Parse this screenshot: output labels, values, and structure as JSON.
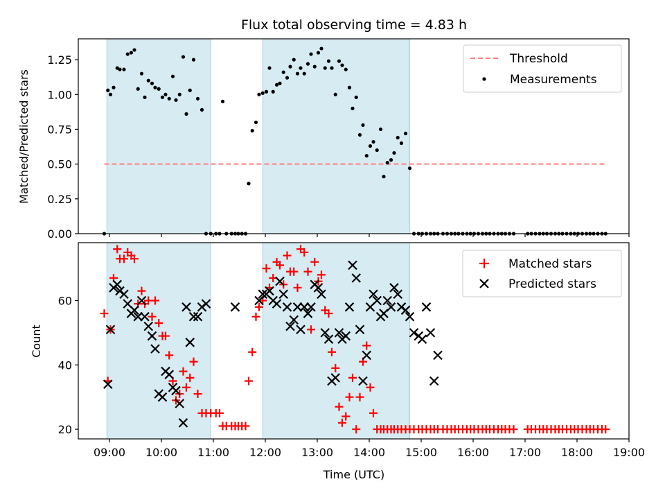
{
  "chart_data": [
    {
      "type": "scatter",
      "title": "Flux total observing time = 4.83 h",
      "ylabel": "Matched/Predicted stars",
      "xlabel": "",
      "xlim": [
        8.4,
        19.0
      ],
      "ylim": [
        0.0,
        1.4
      ],
      "yticks": [
        0.0,
        0.25,
        0.5,
        0.75,
        1.0,
        1.25
      ],
      "ytick_labels": [
        "0.00",
        "0.25",
        "0.50",
        "0.75",
        "1.00",
        "1.25"
      ],
      "shaded_intervals": [
        [
          8.95,
          10.95
        ],
        [
          11.95,
          14.78
        ]
      ],
      "legend_location": "upper right",
      "threshold": {
        "name": "Threshold",
        "value": 0.5,
        "x": [
          8.9,
          18.55
        ],
        "color": "#ff7f7f"
      },
      "series": [
        {
          "name": "Measurements",
          "color": "#000000",
          "x": [
            8.9,
            8.97,
            9.02,
            9.08,
            9.15,
            9.2,
            9.28,
            9.35,
            9.42,
            9.48,
            9.55,
            9.62,
            9.68,
            9.75,
            9.82,
            9.88,
            9.95,
            10.02,
            10.08,
            10.15,
            10.22,
            10.28,
            10.35,
            10.42,
            10.48,
            10.55,
            10.62,
            10.7,
            10.78,
            10.86,
            10.95,
            11.05,
            11.12,
            11.18,
            11.25,
            11.35,
            11.42,
            11.48,
            11.55,
            11.62,
            11.68,
            11.75,
            11.82,
            11.88,
            11.95,
            12.02,
            12.08,
            12.15,
            12.22,
            12.28,
            12.35,
            12.42,
            12.48,
            12.55,
            12.62,
            12.68,
            12.75,
            12.82,
            12.88,
            12.95,
            13.02,
            13.08,
            13.15,
            13.22,
            13.28,
            13.35,
            13.42,
            13.48,
            13.55,
            13.62,
            13.68,
            13.75,
            13.82,
            13.88,
            13.95,
            14.02,
            14.08,
            14.15,
            14.22,
            14.28,
            14.35,
            14.42,
            14.48,
            14.55,
            14.62,
            14.7,
            14.78,
            14.86,
            14.95,
            15.02,
            15.1,
            15.18,
            15.25,
            15.32,
            15.42,
            15.5,
            15.58,
            15.65,
            15.72,
            15.8,
            15.88,
            15.95,
            16.02,
            16.1,
            16.18,
            16.25,
            16.32,
            16.4,
            16.48,
            16.55,
            16.62,
            16.7,
            16.78,
            17.05,
            17.12,
            17.2,
            17.28,
            17.35,
            17.42,
            17.5,
            17.58,
            17.65,
            17.72,
            17.8,
            17.88,
            17.95,
            18.02,
            18.1,
            18.18,
            18.25,
            18.32,
            18.4,
            18.48,
            18.55
          ],
          "y": [
            0.0,
            1.03,
            1.0,
            1.05,
            1.19,
            1.18,
            1.18,
            1.29,
            1.3,
            1.32,
            1.04,
            1.15,
            0.98,
            1.1,
            1.08,
            1.05,
            1.04,
            0.98,
            1.0,
            0.97,
            1.13,
            0.96,
            1.0,
            1.27,
            0.86,
            1.03,
            1.25,
            0.97,
            0.89,
            0.0,
            0.0,
            0.0,
            0.0,
            0.95,
            0.0,
            0.0,
            0.0,
            0.0,
            0.0,
            0.0,
            0.36,
            0.74,
            0.8,
            1.0,
            1.01,
            1.02,
            1.19,
            1.02,
            1.07,
            1.08,
            1.16,
            1.12,
            1.2,
            1.25,
            1.15,
            1.19,
            1.15,
            1.22,
            1.29,
            1.2,
            1.3,
            1.33,
            1.19,
            1.24,
            1.19,
            1.0,
            1.24,
            1.21,
            1.18,
            1.05,
            0.9,
            0.98,
            0.71,
            0.78,
            0.56,
            0.63,
            0.66,
            0.6,
            0.75,
            0.41,
            0.51,
            0.53,
            0.58,
            0.69,
            0.65,
            0.72,
            0.47,
            0.0,
            0.0,
            0.0,
            0.0,
            0.0,
            0.0,
            0.0,
            0.0,
            0.0,
            0.0,
            0.0,
            0.0,
            0.0,
            0.0,
            0.0,
            0.0,
            0.0,
            0.0,
            0.0,
            0.0,
            0.0,
            0.0,
            0.0,
            0.0,
            0.0,
            0.0,
            0.0,
            0.0,
            0.0,
            0.0,
            0.0,
            0.0,
            0.0,
            0.0,
            0.0,
            0.0,
            0.0,
            0.0,
            0.0,
            0.0,
            0.0,
            0.0,
            0.0,
            0.0,
            0.0,
            0.0,
            0.0
          ]
        }
      ]
    },
    {
      "type": "scatter",
      "title": "",
      "xlabel": "Time (UTC)",
      "ylabel": "Count",
      "xlim": [
        8.4,
        19.0
      ],
      "ylim": [
        17,
        78
      ],
      "xticks": [
        9,
        10,
        11,
        12,
        13,
        14,
        15,
        16,
        17,
        18,
        19
      ],
      "xtick_labels": [
        "09:00",
        "10:00",
        "11:00",
        "12:00",
        "13:00",
        "14:00",
        "15:00",
        "16:00",
        "17:00",
        "18:00",
        "19:00"
      ],
      "yticks": [
        20,
        40,
        60
      ],
      "ytick_labels": [
        "20",
        "40",
        "60"
      ],
      "shaded_intervals": [
        [
          8.95,
          10.95
        ],
        [
          11.95,
          14.78
        ]
      ],
      "legend_location": "upper right",
      "series": [
        {
          "name": "Matched stars",
          "color": "#ff0000",
          "marker": "+",
          "x": [
            8.9,
            8.97,
            9.02,
            9.08,
            9.15,
            9.2,
            9.28,
            9.35,
            9.42,
            9.48,
            9.55,
            9.62,
            9.68,
            9.75,
            9.82,
            9.88,
            9.95,
            10.02,
            10.08,
            10.15,
            10.22,
            10.28,
            10.35,
            10.42,
            10.48,
            10.55,
            10.62,
            10.7,
            10.78,
            10.86,
            10.95,
            11.05,
            11.12,
            11.18,
            11.25,
            11.35,
            11.42,
            11.48,
            11.55,
            11.62,
            11.68,
            11.75,
            11.82,
            11.88,
            11.95,
            12.02,
            12.08,
            12.15,
            12.22,
            12.28,
            12.35,
            12.42,
            12.48,
            12.55,
            12.62,
            12.68,
            12.75,
            12.82,
            12.88,
            12.95,
            13.02,
            13.08,
            13.15,
            13.22,
            13.28,
            13.35,
            13.42,
            13.48,
            13.55,
            13.62,
            13.68,
            13.75,
            13.82,
            13.88,
            13.95,
            14.02,
            14.08,
            14.15,
            14.22,
            14.28,
            14.35,
            14.42,
            14.48,
            14.55,
            14.62,
            14.7,
            14.78,
            14.86,
            14.95,
            15.02,
            15.1,
            15.18,
            15.25,
            15.32,
            15.42,
            15.5,
            15.58,
            15.65,
            15.72,
            15.8,
            15.88,
            15.95,
            16.02,
            16.1,
            16.18,
            16.25,
            16.32,
            16.4,
            16.48,
            16.55,
            16.62,
            16.7,
            16.78,
            17.05,
            17.12,
            17.2,
            17.28,
            17.35,
            17.42,
            17.5,
            17.58,
            17.65,
            17.72,
            17.8,
            17.88,
            17.95,
            18.02,
            18.1,
            18.18,
            18.25,
            18.32,
            18.4,
            18.48,
            18.55
          ],
          "y": [
            56,
            35,
            51,
            67,
            76,
            73,
            73,
            75,
            74,
            73,
            59,
            63,
            59,
            60,
            55,
            60,
            53,
            49,
            49,
            43,
            35,
            29,
            31,
            38,
            33,
            36,
            41,
            31,
            25,
            25,
            25,
            25,
            25,
            21,
            21,
            21,
            21,
            21,
            21,
            21,
            35,
            44,
            55,
            58,
            60,
            70,
            64,
            67,
            72,
            71,
            65,
            74,
            69,
            69,
            64,
            76,
            75,
            69,
            51,
            72,
            66,
            68,
            57,
            56,
            44,
            39,
            27,
            22,
            24,
            30,
            36,
            20,
            30,
            41,
            46,
            33,
            25,
            20,
            20,
            20,
            20,
            20,
            20,
            20,
            20,
            20,
            20,
            20,
            20,
            20,
            20,
            20,
            20,
            20,
            20,
            20,
            20,
            20,
            20,
            20,
            20,
            20,
            20,
            20,
            20,
            20,
            20,
            20,
            20,
            20,
            20,
            20,
            20,
            20,
            20,
            20,
            20,
            20,
            20,
            20,
            20,
            20,
            20,
            20,
            20,
            20,
            20,
            20,
            20,
            20,
            20,
            20,
            20,
            20
          ]
        },
        {
          "name": "Predicted stars",
          "color": "#000000",
          "marker": "x",
          "x": [
            8.97,
            9.02,
            9.08,
            9.15,
            9.2,
            9.28,
            9.35,
            9.42,
            9.48,
            9.55,
            9.62,
            9.68,
            9.75,
            9.82,
            9.88,
            9.95,
            10.02,
            10.08,
            10.15,
            10.22,
            10.28,
            10.35,
            10.42,
            10.48,
            10.55,
            10.62,
            10.7,
            10.78,
            10.86,
            11.42,
            11.88,
            11.95,
            12.02,
            12.08,
            12.15,
            12.22,
            12.28,
            12.35,
            12.42,
            12.48,
            12.55,
            12.62,
            12.68,
            12.75,
            12.82,
            12.88,
            12.95,
            13.02,
            13.08,
            13.15,
            13.22,
            13.28,
            13.35,
            13.42,
            13.48,
            13.55,
            13.62,
            13.68,
            13.75,
            13.82,
            13.88,
            13.95,
            14.02,
            14.08,
            14.15,
            14.22,
            14.28,
            14.35,
            14.42,
            14.48,
            14.55,
            14.62,
            14.7,
            14.78,
            14.86,
            14.95,
            15.02,
            15.1,
            15.18,
            15.25,
            15.32
          ],
          "y": [
            34,
            51,
            64,
            65,
            63,
            62,
            59,
            56,
            57,
            55,
            60,
            55,
            52,
            49,
            45,
            31,
            30,
            38,
            37,
            33,
            32,
            28,
            22,
            58,
            47,
            55,
            55,
            58,
            59,
            58,
            60,
            62,
            62,
            63,
            60,
            59,
            66,
            62,
            58,
            52,
            54,
            58,
            51,
            58,
            56,
            58,
            65,
            64,
            62,
            50,
            48,
            35,
            36,
            50,
            48,
            49,
            58,
            71,
            67,
            51,
            35,
            43,
            58,
            62,
            60,
            55,
            56,
            60,
            58,
            64,
            62,
            58,
            57,
            55,
            50,
            49,
            48,
            58,
            50,
            35,
            43
          ]
        }
      ]
    }
  ]
}
